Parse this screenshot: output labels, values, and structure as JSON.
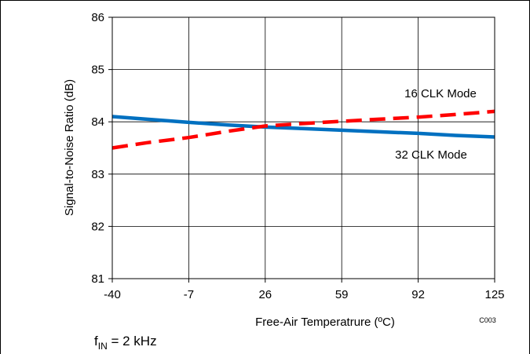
{
  "chart_data": {
    "type": "line",
    "title": "",
    "xlabel": "Free-Air Temperatrure (ºC)",
    "ylabel": "Signal-to-Noise Ratio (dB)",
    "xlim": [
      -40,
      125
    ],
    "ylim": [
      81,
      86
    ],
    "x_ticks": [
      "-40",
      "-7",
      "26",
      "59",
      "92",
      "125"
    ],
    "y_ticks": [
      "81",
      "82",
      "83",
      "84",
      "85",
      "86"
    ],
    "grid": true,
    "legend": "none",
    "series": [
      {
        "name": "16 CLK Mode",
        "color": "#ff0000",
        "dashed": true,
        "x": [
          -40,
          -25,
          -7,
          10,
          26,
          43,
          59,
          75,
          92,
          108,
          125
        ],
        "y": [
          83.5,
          83.6,
          83.7,
          83.82,
          83.92,
          83.97,
          84.01,
          84.05,
          84.09,
          84.14,
          84.2
        ]
      },
      {
        "name": "32 CLK Mode",
        "color": "#0070c0",
        "dashed": false,
        "x": [
          -40,
          -25,
          -7,
          10,
          26,
          43,
          59,
          75,
          92,
          108,
          125
        ],
        "y": [
          84.1,
          84.05,
          83.99,
          83.94,
          83.9,
          83.87,
          83.84,
          83.81,
          83.78,
          83.74,
          83.71
        ]
      }
    ],
    "annotations": {
      "code": "C003",
      "footnote_main": "f",
      "footnote_sub": "IN",
      "footnote_rest": " = 2 kHz"
    }
  }
}
